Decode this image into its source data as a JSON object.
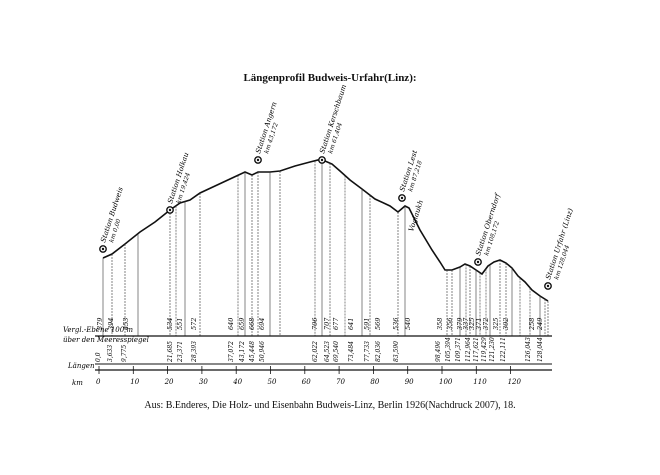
{
  "title": "Längenprofil Budweis-Urfahr(Linz):",
  "caption": "Aus: B.Enderes, Die Holz- und Eisenbahn Budweis-Linz, Berlin 1926(Nachdruck 2007), 18.",
  "datum_line_1": "Vergl.-Ebene 100 m",
  "datum_line_2": "über den Meeresspiegel",
  "lengths_label": "Längen",
  "km_label": "km",
  "km_ticks": [
    "0",
    "10",
    "20",
    "30",
    "40",
    "50",
    "60",
    "70",
    "80",
    "90",
    "100",
    "110",
    "120"
  ],
  "gradient_label": "Voglaukh",
  "stations": [
    {
      "name": "Station Budweis",
      "km": "km 0,00"
    },
    {
      "name": "Station Holkau",
      "km": "km 19,424"
    },
    {
      "name": "Station Angern",
      "km": "km 43,172"
    },
    {
      "name": "Station Kerschbaum",
      "km": "km 61,404"
    },
    {
      "name": "Station Lest",
      "km": "km 87,218"
    },
    {
      "name": "Station Oberndorf",
      "km": "km 108,172"
    },
    {
      "name": "Station Urfahr (Linz)",
      "km": "km 128,044"
    }
  ],
  "elevations": [
    "379",
    "394",
    "453",
    "534",
    "551",
    "572",
    "640",
    "659",
    "668",
    "694",
    "706",
    "707",
    "677",
    "641",
    "591",
    "569",
    "536",
    "540",
    "358",
    "356",
    "379",
    "337",
    "325",
    "371",
    "372",
    "325",
    "302",
    "258",
    "249"
  ],
  "distances": [
    "0,0",
    "3,633",
    "9,775",
    "21,685",
    "23,371",
    "28,393",
    "37,072",
    "43,172",
    "45,448",
    "50,946",
    "62,022",
    "64,523",
    "69,540",
    "73,484",
    "77,733",
    "82,036",
    "83,590",
    "98,496",
    "105,394",
    "109,371",
    "112,964",
    "117,621",
    "119,429",
    "121,230",
    "122,111",
    "126,043",
    "128,044"
  ]
}
